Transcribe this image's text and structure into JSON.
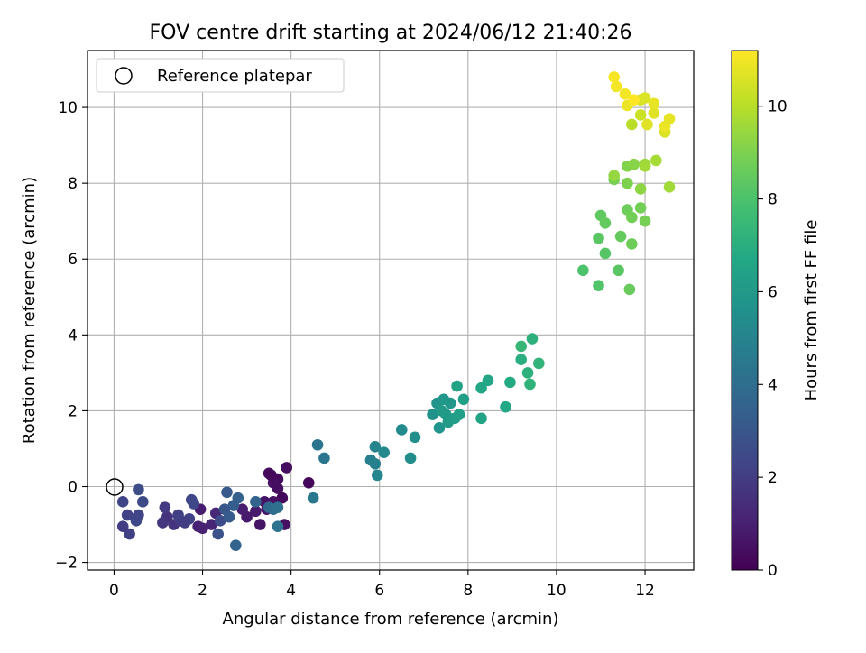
{
  "chart_data": {
    "type": "scatter",
    "title": "FOV centre drift starting at 2024/06/12 21:40:26",
    "xlabel": "Angular distance from reference (arcmin)",
    "ylabel": "Rotation from reference (arcmin)",
    "xlim": [
      -0.6,
      13.1
    ],
    "ylim": [
      -2.2,
      11.5
    ],
    "xticks": [
      0,
      2,
      4,
      6,
      8,
      10,
      12
    ],
    "yticks": [
      -2,
      0,
      2,
      4,
      6,
      8,
      10
    ],
    "xtick_labels": [
      "0",
      "2",
      "4",
      "6",
      "8",
      "10",
      "12"
    ],
    "ytick_labels": [
      "−2",
      "0",
      "2",
      "4",
      "6",
      "8",
      "10"
    ],
    "grid": true,
    "colormap": "viridis",
    "colorbar": {
      "label": "Hours from first FF file",
      "range": [
        0,
        11.2
      ],
      "ticks": [
        0,
        2,
        4,
        6,
        8,
        10
      ],
      "tick_labels": [
        "0",
        "2",
        "4",
        "6",
        "8",
        "10"
      ]
    },
    "legend": {
      "position": "upper-left",
      "entries": [
        {
          "label": "Reference platepar",
          "marker": "open-circle"
        }
      ]
    },
    "reference_point": {
      "x": 0,
      "y": 0
    },
    "points": [
      {
        "x": 3.5,
        "y": 0.35,
        "h": 0.3
      },
      {
        "x": 3.7,
        "y": 0.2,
        "h": 0.3
      },
      {
        "x": 3.9,
        "y": 0.5,
        "h": 0.4
      },
      {
        "x": 3.6,
        "y": 0.1,
        "h": 0.5
      },
      {
        "x": 3.55,
        "y": 0.3,
        "h": 0.2
      },
      {
        "x": 3.8,
        "y": -0.3,
        "h": 0.2
      },
      {
        "x": 3.7,
        "y": -0.05,
        "h": 0.4
      },
      {
        "x": 3.85,
        "y": -1.0,
        "h": 0.5
      },
      {
        "x": 3.6,
        "y": -0.4,
        "h": 0.5
      },
      {
        "x": 3.3,
        "y": -1.0,
        "h": 0.6
      },
      {
        "x": 3.4,
        "y": -0.4,
        "h": 0.6
      },
      {
        "x": 4.4,
        "y": 0.1,
        "h": 0.2
      },
      {
        "x": 3.2,
        "y": -0.65,
        "h": 0.8
      },
      {
        "x": 3.45,
        "y": -0.6,
        "h": 0.7
      },
      {
        "x": 3.0,
        "y": -0.8,
        "h": 0.8
      },
      {
        "x": 2.9,
        "y": -0.6,
        "h": 0.9
      },
      {
        "x": 1.95,
        "y": -0.6,
        "h": 0.9
      },
      {
        "x": 1.9,
        "y": -1.05,
        "h": 1.0
      },
      {
        "x": 2.0,
        "y": -1.1,
        "h": 1.1
      },
      {
        "x": 2.2,
        "y": -1.0,
        "h": 1.2
      },
      {
        "x": 2.3,
        "y": -0.7,
        "h": 1.3
      },
      {
        "x": 1.2,
        "y": -0.8,
        "h": 1.6
      },
      {
        "x": 1.35,
        "y": -1.0,
        "h": 1.7
      },
      {
        "x": 1.1,
        "y": -0.95,
        "h": 1.8
      },
      {
        "x": 1.15,
        "y": -0.55,
        "h": 1.9
      },
      {
        "x": 1.5,
        "y": -0.9,
        "h": 2.0
      },
      {
        "x": 1.45,
        "y": -0.75,
        "h": 2.1
      },
      {
        "x": 1.7,
        "y": -0.85,
        "h": 2.2
      },
      {
        "x": 1.6,
        "y": -0.95,
        "h": 2.0
      },
      {
        "x": 1.75,
        "y": -0.35,
        "h": 2.3
      },
      {
        "x": 1.8,
        "y": -0.45,
        "h": 2.4
      },
      {
        "x": 0.2,
        "y": -1.05,
        "h": 2.0
      },
      {
        "x": 0.35,
        "y": -1.25,
        "h": 2.1
      },
      {
        "x": 0.3,
        "y": -0.75,
        "h": 2.2
      },
      {
        "x": 0.2,
        "y": -0.4,
        "h": 2.3
      },
      {
        "x": 0.5,
        "y": -0.9,
        "h": 2.4
      },
      {
        "x": 0.55,
        "y": -0.75,
        "h": 2.3
      },
      {
        "x": 0.65,
        "y": -0.4,
        "h": 2.5
      },
      {
        "x": 0.55,
        "y": -0.08,
        "h": 2.6
      },
      {
        "x": 2.4,
        "y": -0.9,
        "h": 2.6
      },
      {
        "x": 2.35,
        "y": -1.25,
        "h": 2.8
      },
      {
        "x": 2.5,
        "y": -0.6,
        "h": 3.0
      },
      {
        "x": 2.55,
        "y": -0.15,
        "h": 3.1
      },
      {
        "x": 2.6,
        "y": -0.8,
        "h": 3.2
      },
      {
        "x": 2.7,
        "y": -0.5,
        "h": 3.3
      },
      {
        "x": 2.8,
        "y": -0.3,
        "h": 3.5
      },
      {
        "x": 2.75,
        "y": -1.55,
        "h": 3.6
      },
      {
        "x": 3.2,
        "y": -0.4,
        "h": 3.6
      },
      {
        "x": 3.5,
        "y": -0.55,
        "h": 3.8
      },
      {
        "x": 3.6,
        "y": -0.6,
        "h": 4.0
      },
      {
        "x": 3.7,
        "y": -0.55,
        "h": 4.1
      },
      {
        "x": 3.7,
        "y": -1.05,
        "h": 4.2
      },
      {
        "x": 4.6,
        "y": 1.1,
        "h": 4.3
      },
      {
        "x": 4.75,
        "y": 0.75,
        "h": 4.4
      },
      {
        "x": 4.5,
        "y": -0.3,
        "h": 4.5
      },
      {
        "x": 5.8,
        "y": 0.7,
        "h": 4.8
      },
      {
        "x": 5.9,
        "y": 0.6,
        "h": 4.9
      },
      {
        "x": 5.9,
        "y": 1.05,
        "h": 5.0
      },
      {
        "x": 5.95,
        "y": 0.3,
        "h": 5.1
      },
      {
        "x": 6.1,
        "y": 0.9,
        "h": 5.2
      },
      {
        "x": 6.5,
        "y": 1.5,
        "h": 5.3
      },
      {
        "x": 6.7,
        "y": 0.75,
        "h": 5.4
      },
      {
        "x": 6.8,
        "y": 1.3,
        "h": 5.5
      },
      {
        "x": 7.2,
        "y": 1.9,
        "h": 5.6
      },
      {
        "x": 7.3,
        "y": 2.2,
        "h": 5.7
      },
      {
        "x": 7.35,
        "y": 1.55,
        "h": 5.8
      },
      {
        "x": 7.45,
        "y": 2.3,
        "h": 5.9
      },
      {
        "x": 7.5,
        "y": 1.9,
        "h": 6.0
      },
      {
        "x": 7.4,
        "y": 2.0,
        "h": 6.1
      },
      {
        "x": 7.55,
        "y": 1.7,
        "h": 6.1
      },
      {
        "x": 7.6,
        "y": 2.2,
        "h": 5.9
      },
      {
        "x": 7.7,
        "y": 1.8,
        "h": 6.2
      },
      {
        "x": 7.8,
        "y": 1.9,
        "h": 6.3
      },
      {
        "x": 7.9,
        "y": 2.3,
        "h": 6.3
      },
      {
        "x": 7.75,
        "y": 2.65,
        "h": 6.5
      },
      {
        "x": 8.3,
        "y": 1.8,
        "h": 6.5
      },
      {
        "x": 8.3,
        "y": 2.6,
        "h": 6.6
      },
      {
        "x": 8.45,
        "y": 2.8,
        "h": 6.6
      },
      {
        "x": 8.85,
        "y": 2.1,
        "h": 6.7
      },
      {
        "x": 8.95,
        "y": 2.75,
        "h": 6.8
      },
      {
        "x": 9.2,
        "y": 3.35,
        "h": 7.0
      },
      {
        "x": 9.35,
        "y": 3.0,
        "h": 7.1
      },
      {
        "x": 9.4,
        "y": 2.7,
        "h": 7.2
      },
      {
        "x": 9.45,
        "y": 3.9,
        "h": 7.1
      },
      {
        "x": 9.6,
        "y": 3.25,
        "h": 7.3
      },
      {
        "x": 9.2,
        "y": 3.7,
        "h": 7.4
      },
      {
        "x": 10.6,
        "y": 5.7,
        "h": 8.0
      },
      {
        "x": 10.95,
        "y": 5.3,
        "h": 8.1
      },
      {
        "x": 10.95,
        "y": 6.55,
        "h": 8.3
      },
      {
        "x": 11.1,
        "y": 6.15,
        "h": 8.2
      },
      {
        "x": 11.0,
        "y": 7.15,
        "h": 8.4
      },
      {
        "x": 11.1,
        "y": 6.95,
        "h": 8.5
      },
      {
        "x": 11.4,
        "y": 5.7,
        "h": 8.3
      },
      {
        "x": 11.45,
        "y": 6.6,
        "h": 8.5
      },
      {
        "x": 11.65,
        "y": 5.2,
        "h": 8.6
      },
      {
        "x": 11.6,
        "y": 7.3,
        "h": 8.7
      },
      {
        "x": 11.7,
        "y": 6.4,
        "h": 8.7
      },
      {
        "x": 11.7,
        "y": 7.1,
        "h": 8.8
      },
      {
        "x": 11.9,
        "y": 7.35,
        "h": 8.8
      },
      {
        "x": 12.0,
        "y": 7.0,
        "h": 8.9
      },
      {
        "x": 11.3,
        "y": 8.1,
        "h": 8.9
      },
      {
        "x": 11.6,
        "y": 8.0,
        "h": 9.0
      },
      {
        "x": 11.6,
        "y": 8.45,
        "h": 9.1
      },
      {
        "x": 11.75,
        "y": 8.5,
        "h": 9.2
      },
      {
        "x": 11.9,
        "y": 7.85,
        "h": 9.3
      },
      {
        "x": 11.3,
        "y": 8.2,
        "h": 9.4
      },
      {
        "x": 12.0,
        "y": 8.5,
        "h": 9.5
      },
      {
        "x": 12.0,
        "y": 8.45,
        "h": 9.6
      },
      {
        "x": 12.25,
        "y": 8.6,
        "h": 9.7
      },
      {
        "x": 12.55,
        "y": 7.9,
        "h": 9.6
      },
      {
        "x": 11.7,
        "y": 9.55,
        "h": 10.0
      },
      {
        "x": 11.9,
        "y": 9.8,
        "h": 10.3
      },
      {
        "x": 11.9,
        "y": 10.2,
        "h": 10.5
      },
      {
        "x": 12.0,
        "y": 10.25,
        "h": 10.6
      },
      {
        "x": 12.05,
        "y": 9.55,
        "h": 10.7
      },
      {
        "x": 12.2,
        "y": 9.85,
        "h": 10.7
      },
      {
        "x": 12.2,
        "y": 10.1,
        "h": 10.8
      },
      {
        "x": 12.45,
        "y": 9.35,
        "h": 10.6
      },
      {
        "x": 12.45,
        "y": 9.5,
        "h": 10.9
      },
      {
        "x": 12.55,
        "y": 9.7,
        "h": 10.8
      },
      {
        "x": 11.35,
        "y": 10.55,
        "h": 11.0
      },
      {
        "x": 11.3,
        "y": 10.8,
        "h": 11.1
      },
      {
        "x": 11.55,
        "y": 10.35,
        "h": 11.0
      },
      {
        "x": 11.6,
        "y": 10.05,
        "h": 10.9
      },
      {
        "x": 11.75,
        "y": 10.2,
        "h": 11.2
      }
    ]
  }
}
